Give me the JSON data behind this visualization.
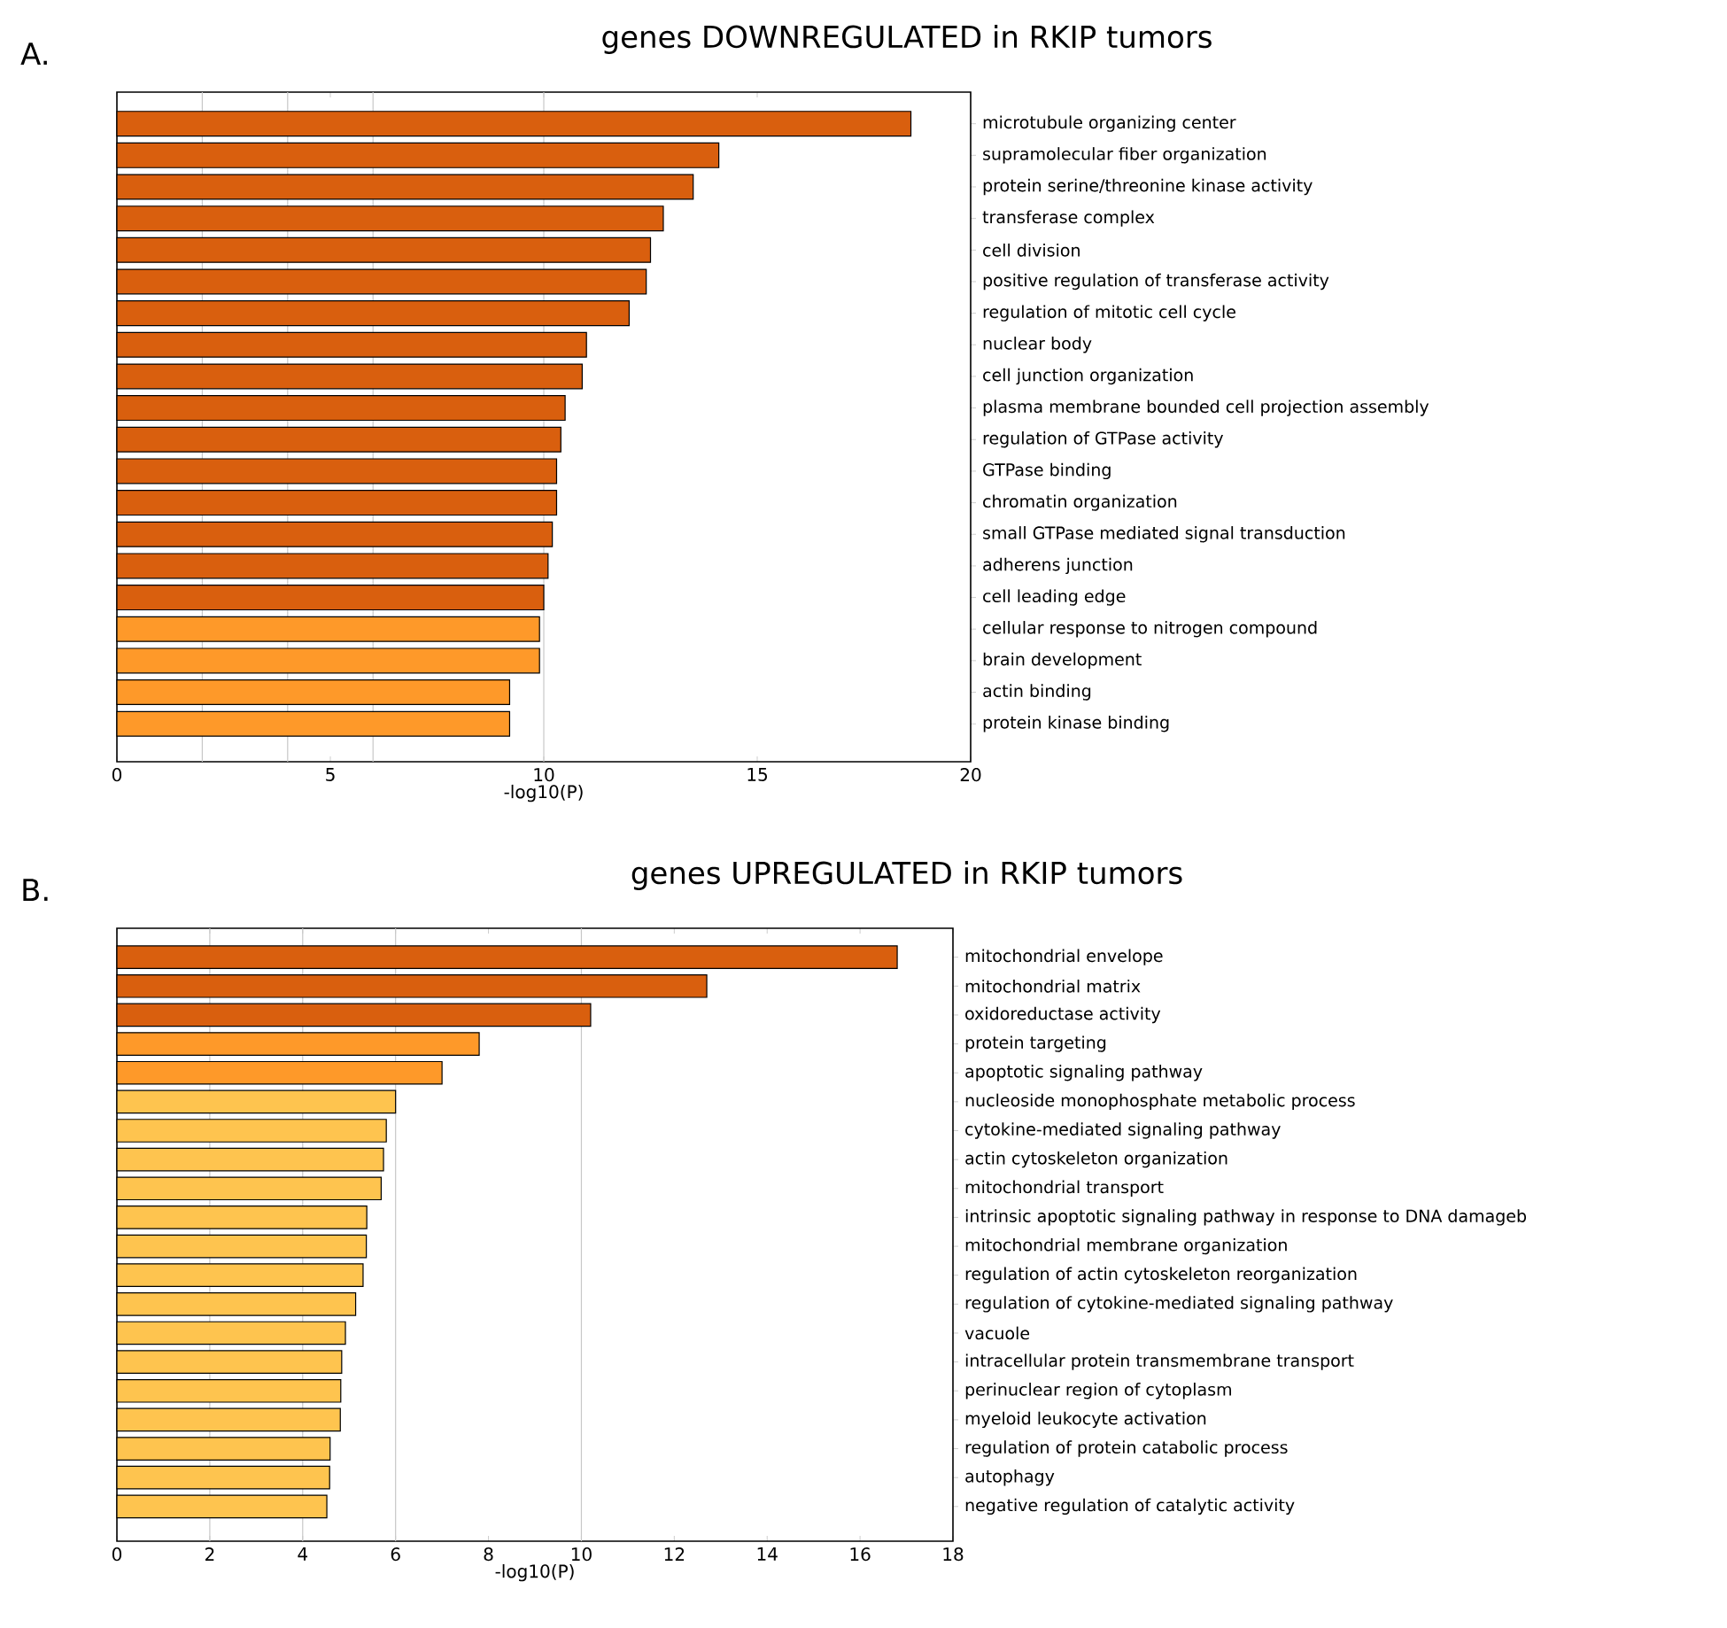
{
  "chart_data": [
    {
      "type": "bar",
      "orientation": "horizontal",
      "title": "genes DOWNREGULATED in RKIP tumors",
      "xlabel": "-log10(P)",
      "annotations": [
        "A."
      ],
      "categories": [
        "microtubule organizing center",
        "supramolecular fiber organization",
        "protein serine/threonine kinase activity",
        "transferase complex",
        "cell division",
        "positive regulation of transferase activity",
        "regulation of mitotic cell cycle",
        "nuclear body",
        "cell junction organization",
        "plasma membrane bounded cell projection assembly",
        "regulation of GTPase activity",
        "GTPase binding",
        "chromatin organization",
        "small GTPase mediated signal transduction",
        "adherens junction",
        "cell leading edge",
        "cellular response to nitrogen compound",
        "brain development",
        "actin binding",
        "protein kinase binding"
      ],
      "values": [
        18.6,
        14.1,
        13.5,
        12.8,
        12.5,
        12.4,
        12.0,
        11.0,
        10.9,
        10.5,
        10.4,
        10.3,
        10.3,
        10.2,
        10.1,
        10.0,
        9.9,
        9.9,
        9.2,
        9.2
      ],
      "colors": [
        "#d95f0e",
        "#d95f0e",
        "#d95f0e",
        "#d95f0e",
        "#d95f0e",
        "#d95f0e",
        "#d95f0e",
        "#d95f0e",
        "#d95f0e",
        "#d95f0e",
        "#d95f0e",
        "#d95f0e",
        "#d95f0e",
        "#d95f0e",
        "#d95f0e",
        "#d95f0e",
        "#fe9929",
        "#fe9929",
        "#fe9929",
        "#fe9929"
      ],
      "xlim": [
        0,
        20
      ],
      "xticks": [
        0,
        5,
        10,
        15,
        20
      ],
      "ref_lines": [
        {
          "axis": "x",
          "value": 2,
          "color": "#c8c8c8"
        },
        {
          "axis": "x",
          "value": 4,
          "color": "#c8c8c8"
        },
        {
          "axis": "x",
          "value": 6,
          "color": "#c8c8c8"
        },
        {
          "axis": "x",
          "value": 10,
          "color": "#c8c8c8"
        }
      ]
    },
    {
      "type": "bar",
      "orientation": "horizontal",
      "title": "genes UPREGULATED in RKIP tumors",
      "xlabel": "-log10(P)",
      "annotations": [
        "B."
      ],
      "categories": [
        "mitochondrial envelope",
        "mitochondrial matrix",
        "oxidoreductase activity",
        "protein targeting",
        "apoptotic signaling pathway",
        "nucleoside monophosphate metabolic process",
        "cytokine-mediated signaling pathway",
        "actin cytoskeleton organization",
        "mitochondrial transport",
        "intrinsic apoptotic signaling pathway in response to DNA damageb",
        "mitochondrial membrane organization",
        "regulation of actin cytoskeleton reorganization",
        "regulation of cytokine-mediated signaling pathway",
        "vacuole",
        "intracellular protein transmembrane transport",
        "perinuclear region of cytoplasm",
        "myeloid leukocyte activation",
        "regulation of protein catabolic process",
        "autophagy",
        "negative regulation of catalytic activity"
      ],
      "values": [
        16.8,
        12.7,
        10.2,
        7.8,
        7.0,
        6.0,
        5.8,
        5.74,
        5.69,
        5.38,
        5.37,
        5.3,
        5.14,
        4.92,
        4.84,
        4.82,
        4.81,
        4.59,
        4.58,
        4.52
      ],
      "colors": [
        "#d95f0e",
        "#d95f0e",
        "#d95f0e",
        "#fe9929",
        "#fe9929",
        "#fec44f",
        "#fec44f",
        "#fec44f",
        "#fec44f",
        "#fec44f",
        "#fec44f",
        "#fec44f",
        "#fec44f",
        "#fec44f",
        "#fec44f",
        "#fec44f",
        "#fec44f",
        "#fec44f",
        "#fec44f",
        "#fec44f"
      ],
      "xlim": [
        0,
        18
      ],
      "xticks": [
        0,
        2,
        4,
        6,
        8,
        10,
        12,
        14,
        16,
        18
      ],
      "ref_lines": [
        {
          "axis": "x",
          "value": 2,
          "color": "#c8c8c8"
        },
        {
          "axis": "x",
          "value": 4,
          "color": "#c8c8c8"
        },
        {
          "axis": "x",
          "value": 6,
          "color": "#c8c8c8"
        },
        {
          "axis": "x",
          "value": 10,
          "color": "#c8c8c8"
        }
      ]
    }
  ]
}
